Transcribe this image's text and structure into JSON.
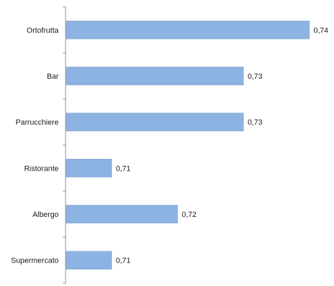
{
  "chart_data": {
    "type": "bar",
    "orientation": "horizontal",
    "categories": [
      "Ortofrutta",
      "Bar",
      "Parrucchiere",
      "Ristorante",
      "Albergo",
      "Supermercato"
    ],
    "values": [
      0.74,
      0.73,
      0.73,
      0.71,
      0.72,
      0.71
    ],
    "value_labels": [
      "0,74",
      "0,73",
      "0,73",
      "0,71",
      "0,72",
      "0,71"
    ],
    "title": "",
    "xlabel": "",
    "ylabel": "",
    "grid": false,
    "legend": "none",
    "bar_color": "#8db3e2",
    "bar_edge_color": "#6f99cc"
  }
}
